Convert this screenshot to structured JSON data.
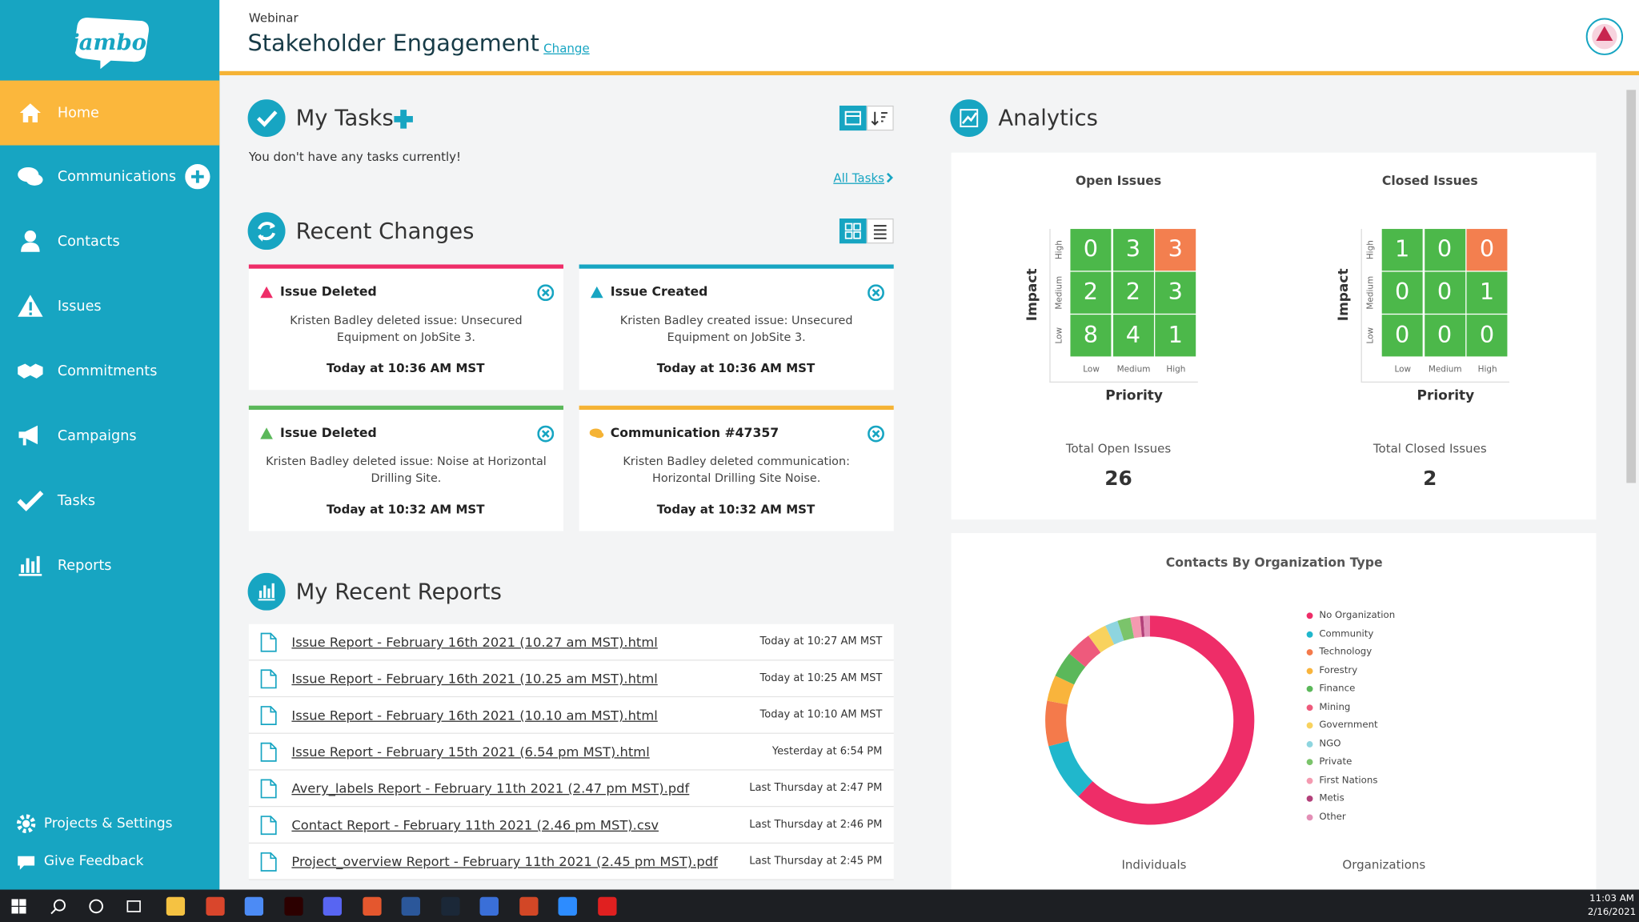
{
  "sidebar": {
    "logo": "jambo",
    "nav": [
      "Home",
      "Communications",
      "Contacts",
      "Issues",
      "Commitments",
      "Campaigns",
      "Tasks",
      "Reports"
    ],
    "footer": [
      "Projects & Settings",
      "Give Feedback"
    ]
  },
  "header": {
    "kicker": "Webinar",
    "title": "Stakeholder Engagement",
    "change": "Change"
  },
  "tasks": {
    "title": "My Tasks",
    "empty": "You don't have any tasks currently!",
    "all": "All Tasks"
  },
  "recent_changes": {
    "title": "Recent Changes",
    "cards": [
      {
        "title": "Issue Deleted",
        "text": "Kristen Badley deleted issue: Unsecured Equipment on JobSite 3.",
        "time": "Today at 10:36 AM MST"
      },
      {
        "title": "Issue Created",
        "text": "Kristen Badley created issue: Unsecured Equipment on JobSite 3.",
        "time": "Today at 10:36 AM MST"
      },
      {
        "title": "Issue Deleted",
        "text": "Kristen Badley deleted issue: Noise at Horizontal Drilling Site.",
        "time": "Today at 10:32 AM MST"
      },
      {
        "title": "Communication #47357",
        "text": "Kristen Badley deleted communication: Horizontal Drilling Site Noise.",
        "time": "Today at 10:32 AM MST"
      }
    ]
  },
  "reports": {
    "title": "My Recent Reports",
    "rows": [
      {
        "name": "Issue Report - February 16th 2021 (10.27 am MST).html",
        "time": "Today at 10:27 AM MST"
      },
      {
        "name": "Issue Report - February 16th 2021 (10.25 am MST).html",
        "time": "Today at 10:25 AM MST"
      },
      {
        "name": "Issue Report - February 16th 2021 (10.10 am MST).html",
        "time": "Today at 10:10 AM MST"
      },
      {
        "name": "Issue Report - February 15th 2021 (6.54 pm MST).html",
        "time": "Yesterday at 6:54 PM"
      },
      {
        "name": "Avery_labels Report - February 11th 2021 (2.47 pm MST).pdf",
        "time": "Last Thursday at 2:47 PM"
      },
      {
        "name": "Contact Report - February 11th 2021 (2.46 pm MST).csv",
        "time": "Last Thursday at 2:46 PM"
      },
      {
        "name": "Project_overview Report - February 11th 2021 (2.45 pm MST).pdf",
        "time": "Last Thursday at 2:45 PM"
      }
    ]
  },
  "analytics": {
    "title": "Analytics",
    "matrices": [
      {
        "title": "Open Issues",
        "y_label": "Impact",
        "x_label": "Priority",
        "rows": [
          "High",
          "Medium",
          "Low"
        ],
        "cols": [
          "Low",
          "Medium",
          "High"
        ],
        "cells": [
          [
            0,
            3,
            3
          ],
          [
            2,
            2,
            3
          ],
          [
            8,
            4,
            1
          ]
        ],
        "total_label": "Total Open Issues",
        "total": 26
      },
      {
        "title": "Closed Issues",
        "y_label": "Impact",
        "x_label": "Priority",
        "rows": [
          "High",
          "Medium",
          "Low"
        ],
        "cols": [
          "Low",
          "Medium",
          "High"
        ],
        "cells": [
          [
            1,
            0,
            0
          ],
          [
            0,
            0,
            1
          ],
          [
            0,
            0,
            0
          ]
        ],
        "total_label": "Total Closed Issues",
        "total": 2
      }
    ],
    "contacts_footer": [
      "Individuals",
      "Organizations"
    ]
  },
  "chart_data": {
    "type": "pie",
    "donut": true,
    "title": "Contacts By Organization Type",
    "categories": [
      "No Organization",
      "Community",
      "Technology",
      "Forestry",
      "Finance",
      "Mining",
      "Government",
      "NGO",
      "Private",
      "First Nations",
      "Metis",
      "Other"
    ],
    "values": [
      62,
      9,
      7,
      4,
      4,
      4,
      3,
      2,
      2,
      1.5,
      0.5,
      1
    ],
    "colors": [
      "#ee2d68",
      "#20b7cc",
      "#f47a4b",
      "#f9b43c",
      "#5bb85a",
      "#ee5a7c",
      "#f8d25e",
      "#8ed5df",
      "#7bc46b",
      "#f49ab0",
      "#b3407a",
      "#e38fb6"
    ],
    "legend": "right"
  },
  "taskbar": {
    "time": "11:03 AM",
    "date": "2/16/2021"
  }
}
